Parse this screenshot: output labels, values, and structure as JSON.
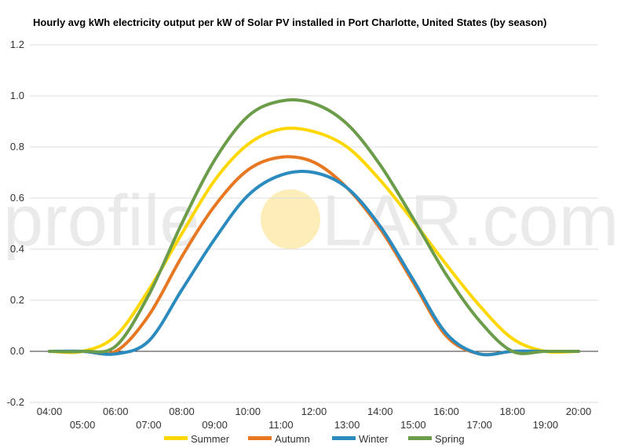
{
  "chart_data": {
    "type": "line",
    "title": "Hourly avg kWh electricity output per kW of Solar PV installed in Port Charlotte, United States (by season)",
    "xlabel": "",
    "ylabel": "",
    "x": [
      "04:00",
      "05:00",
      "06:00",
      "07:00",
      "08:00",
      "09:00",
      "10:00",
      "11:00",
      "12:00",
      "13:00",
      "14:00",
      "15:00",
      "16:00",
      "17:00",
      "18:00",
      "19:00",
      "20:00"
    ],
    "ylim": [
      -0.2,
      1.2
    ],
    "yticks": [
      "1.2",
      "1.0",
      "0.8",
      "0.6",
      "0.4",
      "0.2",
      "0.0",
      "-0.2"
    ],
    "grid": true,
    "legend_position": "bottom",
    "series": [
      {
        "name": "Summer",
        "color": "#ffd700",
        "values": [
          0.0,
          0.0,
          0.06,
          0.24,
          0.46,
          0.67,
          0.81,
          0.87,
          0.86,
          0.8,
          0.67,
          0.51,
          0.34,
          0.18,
          0.05,
          0.0,
          0.0
        ]
      },
      {
        "name": "Autumn",
        "color": "#e87722",
        "values": [
          0.0,
          0.0,
          0.0,
          0.14,
          0.37,
          0.57,
          0.71,
          0.76,
          0.74,
          0.64,
          0.48,
          0.27,
          0.06,
          -0.01,
          0.0,
          0.0,
          0.0
        ]
      },
      {
        "name": "Winter",
        "color": "#2b8bbf",
        "values": [
          0.0,
          0.0,
          -0.01,
          0.04,
          0.24,
          0.44,
          0.61,
          0.69,
          0.7,
          0.64,
          0.49,
          0.28,
          0.07,
          -0.01,
          0.0,
          0.0,
          0.0
        ]
      },
      {
        "name": "Spring",
        "color": "#6b9c4a",
        "values": [
          0.0,
          0.0,
          0.02,
          0.22,
          0.5,
          0.75,
          0.92,
          0.98,
          0.97,
          0.89,
          0.73,
          0.52,
          0.3,
          0.12,
          0.0,
          0.0,
          0.0
        ]
      }
    ]
  },
  "watermark": {
    "left_text": "profile",
    "right_text": "LAR.com",
    "sun_color": "#fde9a8"
  }
}
